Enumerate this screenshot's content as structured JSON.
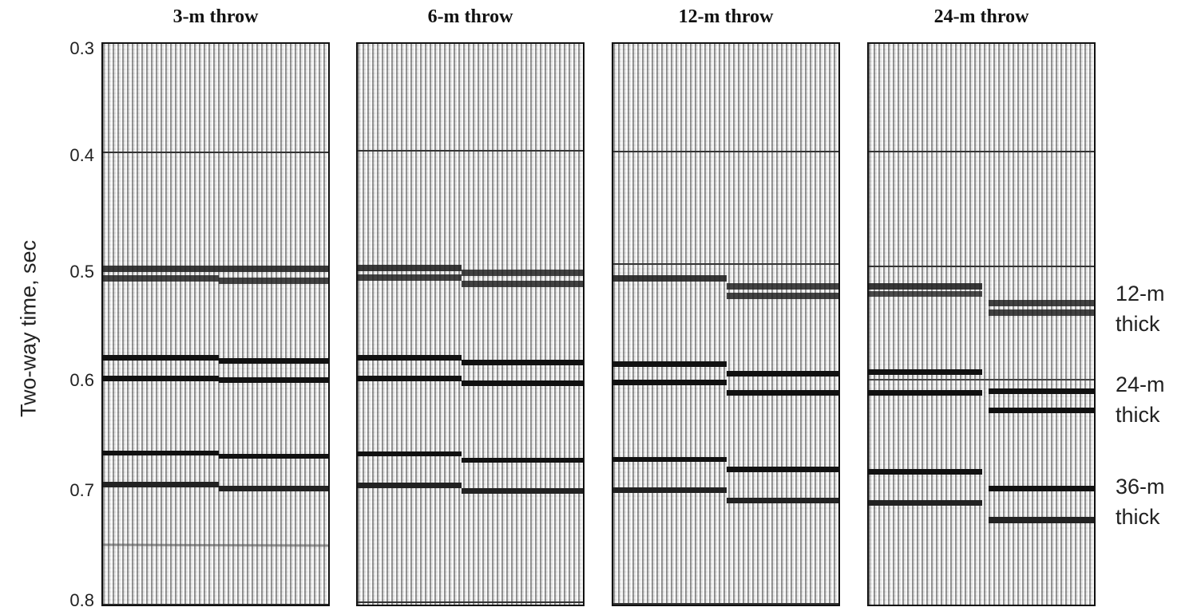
{
  "y_axis": {
    "label": "Two-way time, sec",
    "ticks": [
      "0.3",
      "0.4",
      "0.5",
      "0.6",
      "0.7",
      "0.8"
    ],
    "range": [
      0.3,
      0.8
    ]
  },
  "panels": [
    {
      "title": "3-m throw",
      "throw_m": 3
    },
    {
      "title": "6-m throw",
      "throw_m": 6
    },
    {
      "title": "12-m throw",
      "throw_m": 12
    },
    {
      "title": "24-m throw",
      "throw_m": 24
    }
  ],
  "bed_labels": [
    {
      "line1": "12-m",
      "line2": "thick"
    },
    {
      "line1": "24-m",
      "line2": "thick"
    },
    {
      "line1": "36-m",
      "line2": "thick"
    }
  ],
  "colors": {
    "reflector": "#111111",
    "trace_dark": "#555555",
    "panel_border": "#111111"
  }
}
